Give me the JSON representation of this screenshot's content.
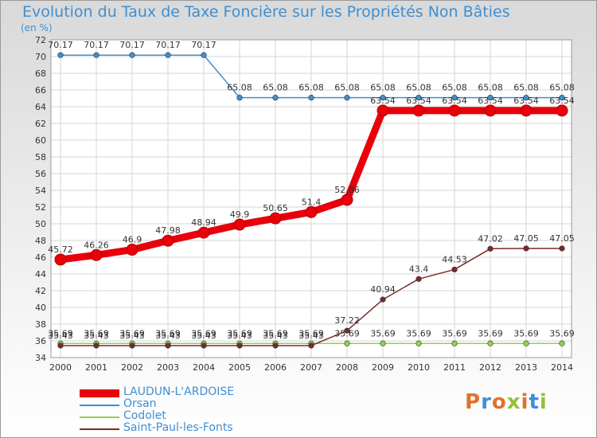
{
  "title": "Evolution du Taux de Taxe Foncière sur les Propriétés Non Bâties",
  "unit_label": "(en %)",
  "logo_text": "Proxiti",
  "chart_data": {
    "type": "line",
    "x": [
      2000,
      2001,
      2002,
      2003,
      2004,
      2005,
      2006,
      2007,
      2008,
      2009,
      2010,
      2011,
      2012,
      2013,
      2014
    ],
    "ylim": [
      34,
      72
    ],
    "yticks": [
      34,
      36,
      38,
      40,
      42,
      44,
      46,
      48,
      50,
      52,
      54,
      56,
      58,
      60,
      62,
      64,
      66,
      68,
      70,
      72
    ],
    "grid": true,
    "legend_position": "bottom-left",
    "series": [
      {
        "name": "LAUDUN-L'ARDOISE",
        "color": "#e8000b",
        "values": [
          45.72,
          46.26,
          46.9,
          47.98,
          48.94,
          49.9,
          50.65,
          51.4,
          52.86,
          63.54,
          63.54,
          63.54,
          63.54,
          63.54,
          63.54
        ],
        "labels": [
          "45.72",
          "46.26",
          "46.9",
          "47.98",
          "48.94",
          "49.9",
          "50.65",
          "51.4",
          "52.86",
          "63.54",
          "63.54",
          "63.54",
          "63.54",
          "63.54",
          "63.54"
        ]
      },
      {
        "name": "Orsan",
        "color": "#3f8fd2",
        "values": [
          70.17,
          70.17,
          70.17,
          70.17,
          70.17,
          65.08,
          65.08,
          65.08,
          65.08,
          65.08,
          65.08,
          65.08,
          65.08,
          65.08,
          65.08
        ],
        "labels": [
          "70.17",
          "70.17",
          "70.17",
          "70.17",
          "70.17",
          "65.08",
          "65.08",
          "65.08",
          "65.08",
          "65.08",
          "65.08",
          "65.08",
          "65.08",
          "65.08",
          "65.08"
        ]
      },
      {
        "name": "Codolet",
        "color": "#8fd44a",
        "values": [
          35.69,
          35.69,
          35.69,
          35.69,
          35.69,
          35.69,
          35.69,
          35.69,
          35.69,
          35.69,
          35.69,
          35.69,
          35.69,
          35.69,
          35.69
        ],
        "labels": [
          "35.69",
          "35.69",
          "35.69",
          "35.69",
          "35.69",
          "35.69",
          "35.69",
          "35.69",
          "35.69",
          "35.69",
          "35.69",
          "35.69",
          "35.69",
          "35.69",
          "35.69"
        ]
      },
      {
        "name": "Saint-Paul-les-Fonts",
        "color": "#7a2a2a",
        "values": [
          35.43,
          35.43,
          35.43,
          35.43,
          35.43,
          35.43,
          35.43,
          35.43,
          37.22,
          40.94,
          43.4,
          44.53,
          47.02,
          47.05,
          47.05
        ],
        "labels": [
          "35.43",
          "35.43",
          "35.43",
          "35.43",
          "35.43",
          "35.43",
          "35.43",
          "35.43",
          "37.22",
          "40.94",
          "43.4",
          "44.53",
          "47.02",
          "47.05",
          "47.05"
        ]
      }
    ]
  }
}
